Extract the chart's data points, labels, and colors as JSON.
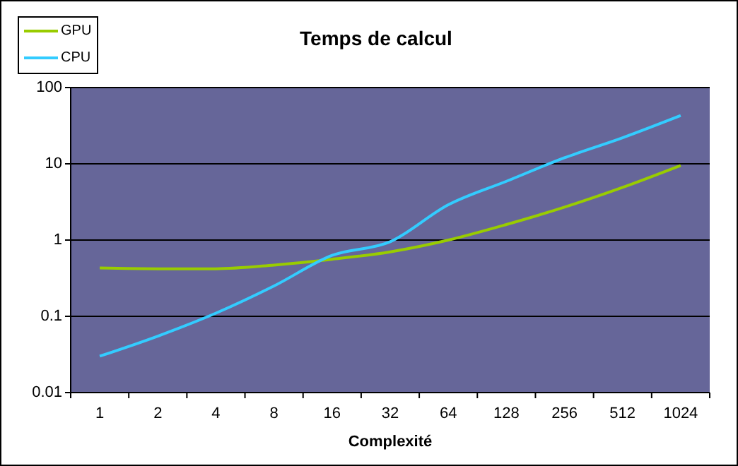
{
  "chart_data": {
    "type": "line",
    "title": "Temps de calcul",
    "xlabel": "Complexité",
    "categories": [
      "1",
      "2",
      "4",
      "8",
      "16",
      "32",
      "64",
      "128",
      "256",
      "512",
      "1024"
    ],
    "series": [
      {
        "name": "GPU",
        "color": "#99cc00",
        "values": [
          0.43,
          0.42,
          0.42,
          0.47,
          0.56,
          0.7,
          1.0,
          1.6,
          2.7,
          4.9,
          9.5
        ]
      },
      {
        "name": "CPU",
        "color": "#33ccff",
        "values": [
          0.03,
          0.055,
          0.11,
          0.25,
          0.63,
          0.95,
          2.9,
          5.9,
          12,
          22,
          43
        ]
      }
    ],
    "log": "y",
    "ylim": [
      0.01,
      100
    ],
    "yticks": [
      0.01,
      0.1,
      1,
      10,
      100
    ],
    "grid": "y",
    "legend": "top left",
    "marker": "none",
    "line_style": "solid"
  }
}
